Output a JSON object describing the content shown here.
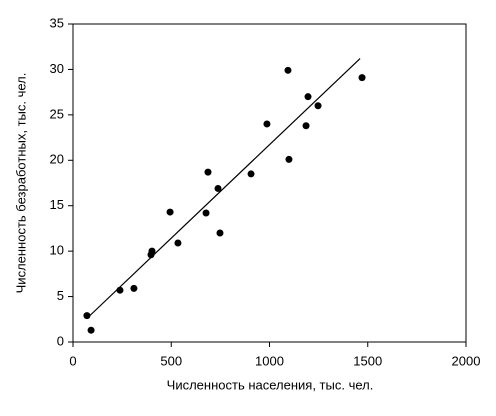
{
  "chart_data": {
    "type": "scatter",
    "x_label": "Численность населения,  тыс. чел.",
    "y_label": "Численность безработных,  тыс. чел.",
    "x": [
      71,
      92,
      239,
      310,
      397,
      402,
      494,
      534,
      677,
      687,
      738,
      748,
      906,
      987,
      1094,
      1099,
      1186,
      1196,
      1247,
      1471
    ],
    "values": [
      2.9,
      1.3,
      5.7,
      5.9,
      9.6,
      10.0,
      14.3,
      10.9,
      14.2,
      18.7,
      16.9,
      12.0,
      18.5,
      24.0,
      29.9,
      20.1,
      23.8,
      27.0,
      26.0,
      29.1
    ],
    "color": "#000000",
    "trendline": {
      "x": [
        71,
        1461
      ],
      "values": [
        2.6,
        31.2
      ],
      "color": "#000000"
    },
    "xlim": [
      0,
      2000
    ],
    "xticks": [
      0,
      500,
      1000,
      1500,
      2000
    ],
    "ylim": [
      0,
      35
    ],
    "yticks": [
      0,
      5,
      10,
      15,
      20,
      25,
      30,
      35
    ],
    "grid": false
  }
}
